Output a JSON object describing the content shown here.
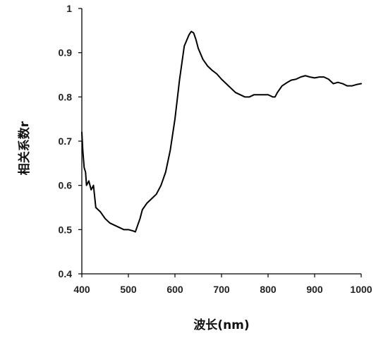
{
  "chart_data": {
    "type": "line",
    "title": "",
    "xlabel": "波长(nm)",
    "ylabel": "相关系数r",
    "xlim": [
      400,
      1000
    ],
    "ylim": [
      0.4,
      1.0
    ],
    "x_ticks": [
      "400",
      "500",
      "600",
      "700",
      "800",
      "900",
      "1000"
    ],
    "y_ticks": [
      "0.4",
      "0.5",
      "0.6",
      "0.7",
      "0.8",
      "0.9",
      "1"
    ],
    "grid": false,
    "legend": "none",
    "line_color": "#000000",
    "series": [
      {
        "x": [
          400,
          402,
          405,
          408,
          410,
          415,
          420,
          425,
          430,
          440,
          450,
          460,
          470,
          480,
          490,
          500,
          510,
          515,
          520,
          525,
          530,
          540,
          550,
          560,
          570,
          580,
          590,
          600,
          610,
          620,
          630,
          635,
          640,
          645,
          650,
          660,
          670,
          680,
          690,
          700,
          710,
          720,
          730,
          740,
          750,
          760,
          770,
          780,
          790,
          800,
          810,
          815,
          820,
          830,
          840,
          850,
          860,
          870,
          880,
          890,
          900,
          910,
          920,
          930,
          940,
          950,
          960,
          970,
          980,
          990,
          1000
        ],
        "y": [
          0.72,
          0.68,
          0.64,
          0.63,
          0.6,
          0.61,
          0.59,
          0.6,
          0.55,
          0.54,
          0.525,
          0.515,
          0.51,
          0.505,
          0.5,
          0.5,
          0.497,
          0.495,
          0.51,
          0.525,
          0.545,
          0.56,
          0.57,
          0.58,
          0.6,
          0.63,
          0.68,
          0.75,
          0.84,
          0.915,
          0.94,
          0.948,
          0.945,
          0.93,
          0.91,
          0.885,
          0.87,
          0.86,
          0.852,
          0.84,
          0.83,
          0.82,
          0.81,
          0.805,
          0.8,
          0.8,
          0.805,
          0.805,
          0.805,
          0.805,
          0.8,
          0.8,
          0.81,
          0.825,
          0.832,
          0.838,
          0.84,
          0.845,
          0.848,
          0.845,
          0.843,
          0.845,
          0.845,
          0.84,
          0.83,
          0.833,
          0.83,
          0.825,
          0.825,
          0.828,
          0.83
        ]
      }
    ]
  }
}
